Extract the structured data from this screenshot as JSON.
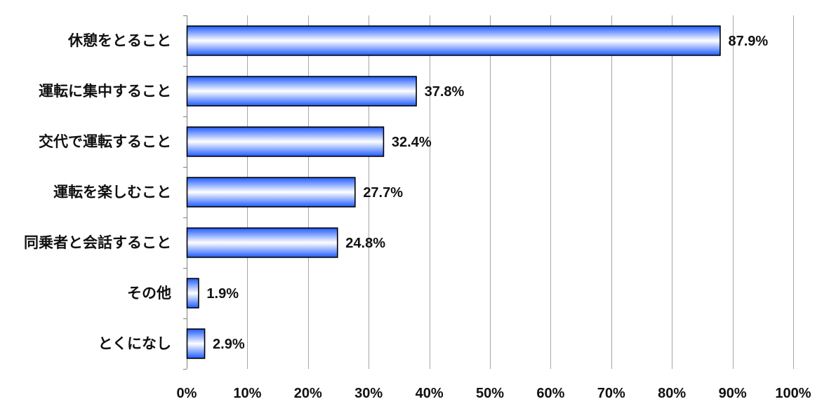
{
  "chart_data": {
    "type": "bar",
    "orientation": "horizontal",
    "categories": [
      "休憩をとること",
      "運転に集中すること",
      "交代で運転すること",
      "運転を楽しむこと",
      "同乗者と会話すること",
      "その他",
      "とくになし"
    ],
    "values": [
      87.9,
      37.8,
      32.4,
      27.7,
      24.8,
      1.9,
      2.9
    ],
    "value_labels": [
      "87.9%",
      "37.8%",
      "32.4%",
      "27.7%",
      "24.8%",
      "1.9%",
      "2.9%"
    ],
    "xlim": [
      0,
      100
    ],
    "x_ticks": [
      0,
      10,
      20,
      30,
      40,
      50,
      60,
      70,
      80,
      90,
      100
    ],
    "x_tick_labels": [
      "0%",
      "10%",
      "20%",
      "30%",
      "40%",
      "50%",
      "60%",
      "70%",
      "80%",
      "90%",
      "100%"
    ],
    "title": "",
    "xlabel": "",
    "ylabel": "",
    "grid": true,
    "legend": "none",
    "colors": {
      "bar_edge": "#1f5bff",
      "bar_center": "#ffffff",
      "bar_outline": "#000000",
      "grid": "#a6a6a6"
    }
  }
}
